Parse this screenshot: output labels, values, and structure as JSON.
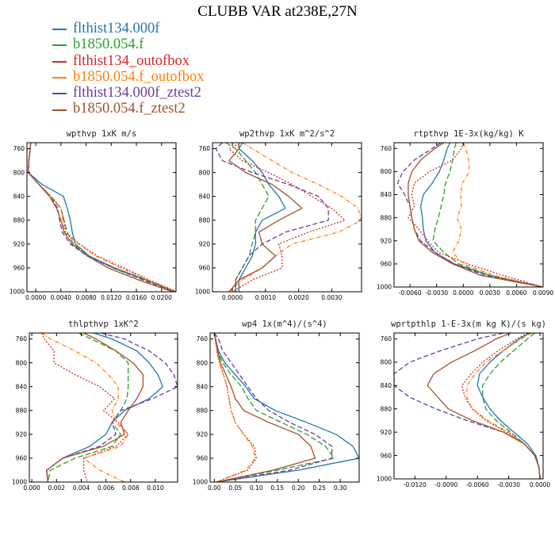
{
  "title": "CLUBB VAR at238E,27N",
  "series_styles": [
    {
      "name": "flthist134.000f",
      "color": "#1f77b4",
      "dash": "none"
    },
    {
      "name": "b1850.054.f",
      "color": "#2ca02c",
      "dash": "7,3"
    },
    {
      "name": "flthist134_outofbox",
      "color": "#d62728",
      "dash": "2,2"
    },
    {
      "name": "b1850.054.f_outofbox",
      "color": "#ff7f0e",
      "dash": "5,2,1,2"
    },
    {
      "name": "flthist134.000f_ztest2",
      "color": "#6a3d9a",
      "dash": "6,3"
    },
    {
      "name": "b1850.054.f_ztest2",
      "color": "#a0522d",
      "dash": "none"
    }
  ],
  "chart_data": [
    {
      "type": "line",
      "title": "wpthvp   1xK m/s",
      "xlim": [
        -0.0014,
        0.0223
      ],
      "ylim": [
        1000,
        750
      ],
      "xticks": [
        0.0,
        0.004,
        0.008,
        0.012,
        0.016,
        0.02
      ],
      "xtick_labels": [
        "0.0000",
        "0.0040",
        "0.0080",
        "0.0120",
        "0.0160",
        "0.0200"
      ],
      "yticks": [
        760,
        800,
        840,
        880,
        920,
        960,
        1000
      ],
      "ytick_labels": [
        "760",
        "800",
        "840",
        "880",
        "920",
        "960",
        "1000"
      ],
      "y": [
        750,
        760,
        780,
        800,
        820,
        840,
        860,
        880,
        900,
        920,
        940,
        960,
        980,
        1000
      ],
      "series": [
        {
          "values": [
            -0.0008,
            -0.0009,
            -0.0011,
            -0.0012,
            0.001,
            0.0044,
            0.005,
            0.0055,
            0.0058,
            0.0063,
            0.0085,
            0.0125,
            0.0175,
            0.0223
          ]
        },
        {
          "values": [
            -0.0008,
            -0.0009,
            -0.0011,
            -0.0012,
            0.0005,
            0.0022,
            0.004,
            0.0045,
            0.005,
            0.006,
            0.0083,
            0.0123,
            0.0173,
            0.0222
          ]
        },
        {
          "values": [
            -0.0008,
            -0.0009,
            -0.0011,
            -0.0012,
            0.0005,
            0.0025,
            0.004,
            0.0045,
            0.0047,
            0.007,
            0.0098,
            0.014,
            0.018,
            0.0225
          ]
        },
        {
          "values": [
            -0.0008,
            -0.0009,
            -0.0011,
            -0.0012,
            0.0005,
            0.0025,
            0.004,
            0.0043,
            0.0045,
            0.0068,
            0.0095,
            0.0135,
            0.0178,
            0.0223
          ]
        },
        {
          "values": [
            -0.0008,
            -0.0009,
            -0.0011,
            -0.0012,
            0.0005,
            0.0022,
            0.0035,
            0.0038,
            0.0042,
            0.0055,
            0.0082,
            0.0123,
            0.017,
            0.022
          ]
        },
        {
          "values": [
            -0.0008,
            -0.0009,
            -0.0011,
            -0.0012,
            0.0005,
            0.0022,
            0.0033,
            0.004,
            0.0045,
            0.0058,
            0.0082,
            0.0115,
            0.0163,
            0.0218
          ]
        }
      ]
    },
    {
      "type": "line",
      "title": "wp2thvp   1xK m^2/s^2",
      "xlim": [
        -0.0006,
        0.0039
      ],
      "ylim": [
        1000,
        750
      ],
      "xticks": [
        0.0,
        0.001,
        0.002,
        0.003
      ],
      "xtick_labels": [
        "0.0000",
        "0.0010",
        "0.0020",
        "0.0030"
      ],
      "yticks": [
        760,
        800,
        840,
        880,
        920,
        960,
        1000
      ],
      "ytick_labels": [
        "760",
        "800",
        "840",
        "880",
        "920",
        "960",
        "1000"
      ],
      "y": [
        750,
        760,
        780,
        800,
        820,
        840,
        860,
        880,
        900,
        920,
        940,
        960,
        980,
        1000
      ],
      "series": [
        {
          "values": [
            0.0003,
            0.0002,
            0.0006,
            0.0009,
            0.0011,
            0.0014,
            0.0016,
            0.0009,
            0.0007,
            0.0007,
            0.0006,
            0.0004,
            0.0002,
            0.0002
          ]
        },
        {
          "values": [
            -0.0002,
            0.0001,
            0.0004,
            0.0007,
            0.0009,
            0.0011,
            0.0009,
            0.0007,
            0.0007,
            0.0006,
            0.0005,
            0.0003,
            0.0001,
            0.0001
          ]
        },
        {
          "values": [
            0.0003,
            -0.0001,
            0.0003,
            0.0011,
            0.0018,
            0.0024,
            0.003,
            0.0034,
            0.0023,
            0.0014,
            0.0015,
            0.0015,
            0.0006,
            0.0
          ]
        },
        {
          "values": [
            0.0003,
            0.0006,
            0.0012,
            0.0018,
            0.0026,
            0.0033,
            0.0038,
            0.0039,
            0.0032,
            0.0018,
            0.0013,
            0.0009,
            0.0003,
            -0.0001
          ]
        },
        {
          "values": [
            -0.0003,
            -0.0005,
            -0.0003,
            0.0006,
            0.0017,
            0.0026,
            0.0029,
            0.0029,
            0.0016,
            0.0009,
            0.0005,
            0.0003,
            0.0001,
            0.0001
          ]
        },
        {
          "values": [
            0.0002,
            0.0002,
            -0.0001,
            0.0004,
            0.0012,
            0.0017,
            0.0021,
            0.0014,
            0.0008,
            0.0009,
            0.0013,
            0.0009,
            0.0002,
            -0.0001
          ]
        }
      ]
    },
    {
      "type": "line",
      "title": "rtpthvp   1E-3x(kg/kg) K",
      "xlim": [
        -0.0078,
        0.009
      ],
      "ylim": [
        1000,
        750
      ],
      "xticks": [
        -0.006,
        -0.003,
        0.0,
        0.003,
        0.006,
        0.009
      ],
      "xtick_labels": [
        "-0.0060",
        "-0.0030",
        "0.0000",
        "0.0030",
        "0.0060",
        "0.0090"
      ],
      "yticks": [
        760,
        800,
        840,
        880,
        920,
        960,
        1000
      ],
      "ytick_labels": [
        "760",
        "800",
        "840",
        "880",
        "920",
        "960",
        "1000"
      ],
      "y": [
        750,
        760,
        780,
        800,
        820,
        840,
        860,
        880,
        900,
        920,
        940,
        960,
        980,
        1000
      ],
      "series": [
        {
          "values": [
            -0.0015,
            -0.0018,
            -0.0022,
            -0.0027,
            -0.0035,
            -0.0045,
            -0.0048,
            -0.0046,
            -0.0045,
            -0.0042,
            -0.0032,
            -0.001,
            0.003,
            0.009
          ]
        },
        {
          "values": [
            -0.0008,
            -0.001,
            -0.0012,
            -0.0015,
            -0.002,
            -0.0022,
            -0.0025,
            -0.0028,
            -0.0032,
            -0.0034,
            -0.0022,
            -0.0005,
            0.003,
            0.009
          ]
        },
        {
          "values": [
            0.0,
            -0.0002,
            -0.0012,
            -0.0038,
            -0.0055,
            -0.0058,
            -0.0055,
            -0.0062,
            -0.005,
            -0.004,
            -0.0028,
            0.0005,
            0.0045,
            0.009
          ]
        },
        {
          "values": [
            0.0,
            0.0003,
            0.0006,
            0.0007,
            -0.0001,
            -0.0003,
            -0.0002,
            -0.0007,
            -0.0002,
            -0.0005,
            -0.0012,
            0.0,
            0.0035,
            0.009
          ]
        },
        {
          "values": [
            -0.0025,
            -0.0035,
            -0.0055,
            -0.0068,
            -0.0074,
            -0.0066,
            -0.006,
            -0.0058,
            -0.0055,
            -0.0048,
            -0.0032,
            -0.001,
            0.0025,
            0.009
          ]
        },
        {
          "values": [
            -0.0022,
            -0.0032,
            -0.0048,
            -0.0058,
            -0.0062,
            -0.0062,
            -0.006,
            -0.0058,
            -0.0055,
            -0.005,
            -0.0035,
            -0.0012,
            0.002,
            0.009
          ]
        }
      ]
    },
    {
      "type": "line",
      "title": "thlpthvp   1xK^2",
      "xlim": [
        -0.0002,
        0.0118
      ],
      "ylim": [
        1000,
        750
      ],
      "xticks": [
        0.0,
        0.002,
        0.004,
        0.006,
        0.008,
        0.01
      ],
      "xtick_labels": [
        "0.000",
        "0.002",
        "0.004",
        "0.006",
        "0.008",
        "0.010"
      ],
      "yticks": [
        760,
        800,
        840,
        880,
        920,
        960,
        1000
      ],
      "ytick_labels": [
        "760",
        "800",
        "840",
        "880",
        "920",
        "960",
        "1000"
      ],
      "y": [
        750,
        760,
        780,
        800,
        820,
        840,
        860,
        880,
        900,
        920,
        940,
        960,
        980,
        1000
      ],
      "series": [
        {
          "values": [
            0.005,
            0.0065,
            0.0085,
            0.0095,
            0.0102,
            0.0106,
            0.0095,
            0.0075,
            0.0065,
            0.006,
            0.0047,
            0.0025,
            0.0012,
            0.0013
          ]
        },
        {
          "values": [
            0.0038,
            0.0048,
            0.0068,
            0.0078,
            0.0078,
            0.0078,
            0.0077,
            0.0072,
            0.0065,
            0.0072,
            0.0065,
            0.0035,
            0.0015,
            0.0013
          ]
        },
        {
          "values": [
            0.0008,
            0.001,
            0.0018,
            0.0018,
            0.0035,
            0.0055,
            0.0067,
            0.0058,
            0.007,
            0.0078,
            0.0068,
            0.0042,
            0.0042,
            0.0045
          ]
        },
        {
          "values": [
            0.0008,
            0.0015,
            0.0035,
            0.0052,
            0.0062,
            0.007,
            0.007,
            0.0065,
            0.0068,
            0.0078,
            0.0072,
            0.0042,
            0.0055,
            0.0075
          ]
        },
        {
          "values": [
            0.0056,
            0.0075,
            0.0095,
            0.0108,
            0.0115,
            0.0118,
            0.0098,
            0.0072,
            0.0065,
            0.0068,
            0.0055,
            0.0025,
            0.0012,
            0.0013
          ]
        },
        {
          "values": [
            0.0042,
            0.0052,
            0.0068,
            0.0082,
            0.009,
            0.009,
            0.0085,
            0.0078,
            0.0072,
            0.0075,
            0.0058,
            0.0025,
            0.0012,
            0.0013
          ]
        }
      ]
    },
    {
      "type": "line",
      "title": "wp4   1x(m^4)/(s^4)",
      "xlim": [
        -0.01,
        0.345
      ],
      "ylim": [
        1000,
        750
      ],
      "xticks": [
        0.0,
        0.05,
        0.1,
        0.15,
        0.2,
        0.25,
        0.3
      ],
      "xtick_labels": [
        "0.00",
        "0.05",
        "0.10",
        "0.15",
        "0.20",
        "0.25",
        "0.30"
      ],
      "yticks": [
        760,
        800,
        840,
        880,
        920,
        960,
        1000
      ],
      "ytick_labels": [
        "760",
        "800",
        "840",
        "880",
        "920",
        "960",
        "1000"
      ],
      "y": [
        750,
        760,
        780,
        800,
        820,
        840,
        860,
        880,
        900,
        920,
        940,
        960,
        980,
        1000
      ],
      "series": [
        {
          "values": [
            0.0,
            0.003,
            0.01,
            0.025,
            0.05,
            0.075,
            0.095,
            0.145,
            0.22,
            0.29,
            0.33,
            0.345,
            0.2,
            0.005
          ]
        },
        {
          "values": [
            0.0,
            0.003,
            0.008,
            0.02,
            0.04,
            0.065,
            0.08,
            0.1,
            0.16,
            0.22,
            0.265,
            0.285,
            0.15,
            0.005
          ]
        },
        {
          "values": [
            0.0,
            0.002,
            0.006,
            0.012,
            0.022,
            0.03,
            0.035,
            0.04,
            0.05,
            0.07,
            0.095,
            0.1,
            0.08,
            0.005
          ]
        },
        {
          "values": [
            0.0,
            0.002,
            0.006,
            0.012,
            0.022,
            0.03,
            0.035,
            0.04,
            0.05,
            0.07,
            0.09,
            0.097,
            0.075,
            0.005
          ]
        },
        {
          "values": [
            0.0,
            0.01,
            0.02,
            0.04,
            0.06,
            0.08,
            0.1,
            0.13,
            0.18,
            0.24,
            0.28,
            0.28,
            0.18,
            0.005
          ]
        },
        {
          "values": [
            0.0,
            0.003,
            0.008,
            0.015,
            0.028,
            0.04,
            0.05,
            0.07,
            0.13,
            0.2,
            0.23,
            0.24,
            0.14,
            0.005
          ]
        }
      ]
    },
    {
      "type": "line",
      "title": "wprtpthlp   1-E-3x(m kg K)/(s kg)",
      "xlim": [
        -0.014,
        0.0003
      ],
      "ylim": [
        1000,
        750
      ],
      "xticks": [
        -0.012,
        -0.009,
        -0.006,
        -0.003,
        0.0
      ],
      "xtick_labels": [
        "-0.0120",
        "-0.0090",
        "-0.0060",
        "-0.0030",
        "0.0000"
      ],
      "yticks": [
        760,
        800,
        840,
        880,
        920,
        960,
        1000
      ],
      "ytick_labels": [
        "760",
        "800",
        "840",
        "880",
        "920",
        "960",
        "1000"
      ],
      "y": [
        750,
        760,
        780,
        800,
        820,
        840,
        860,
        880,
        900,
        920,
        940,
        960,
        980,
        1000
      ],
      "series": [
        {
          "values": [
            -0.001,
            -0.002,
            -0.0035,
            -0.0048,
            -0.0058,
            -0.006,
            -0.0055,
            -0.0048,
            -0.0038,
            -0.0025,
            -0.0012,
            -0.0004,
            -0.0001,
            0.0
          ]
        },
        {
          "values": [
            -0.0005,
            -0.0012,
            -0.0025,
            -0.0038,
            -0.0048,
            -0.0055,
            -0.0055,
            -0.0052,
            -0.0042,
            -0.0028,
            -0.0015,
            -0.0005,
            -0.0001,
            0.0
          ]
        },
        {
          "values": [
            -0.0012,
            -0.0022,
            -0.004,
            -0.0055,
            -0.0066,
            -0.0075,
            -0.0072,
            -0.0065,
            -0.0052,
            -0.0032,
            -0.0015,
            -0.0005,
            -0.0001,
            0.0
          ]
        },
        {
          "values": [
            -0.0008,
            -0.0018,
            -0.0035,
            -0.0052,
            -0.0062,
            -0.007,
            -0.007,
            -0.0065,
            -0.005,
            -0.003,
            -0.0015,
            -0.0005,
            -0.0001,
            0.0
          ]
        },
        {
          "values": [
            -0.0035,
            -0.006,
            -0.0095,
            -0.0125,
            -0.014,
            -0.014,
            -0.0125,
            -0.01,
            -0.007,
            -0.0035,
            -0.0015,
            -0.0005,
            -0.0001,
            0.0
          ]
        },
        {
          "values": [
            -0.0028,
            -0.0042,
            -0.0062,
            -0.0085,
            -0.0102,
            -0.0108,
            -0.0098,
            -0.0088,
            -0.0065,
            -0.0035,
            -0.0015,
            -0.0005,
            -0.0001,
            0.0
          ]
        }
      ]
    }
  ]
}
